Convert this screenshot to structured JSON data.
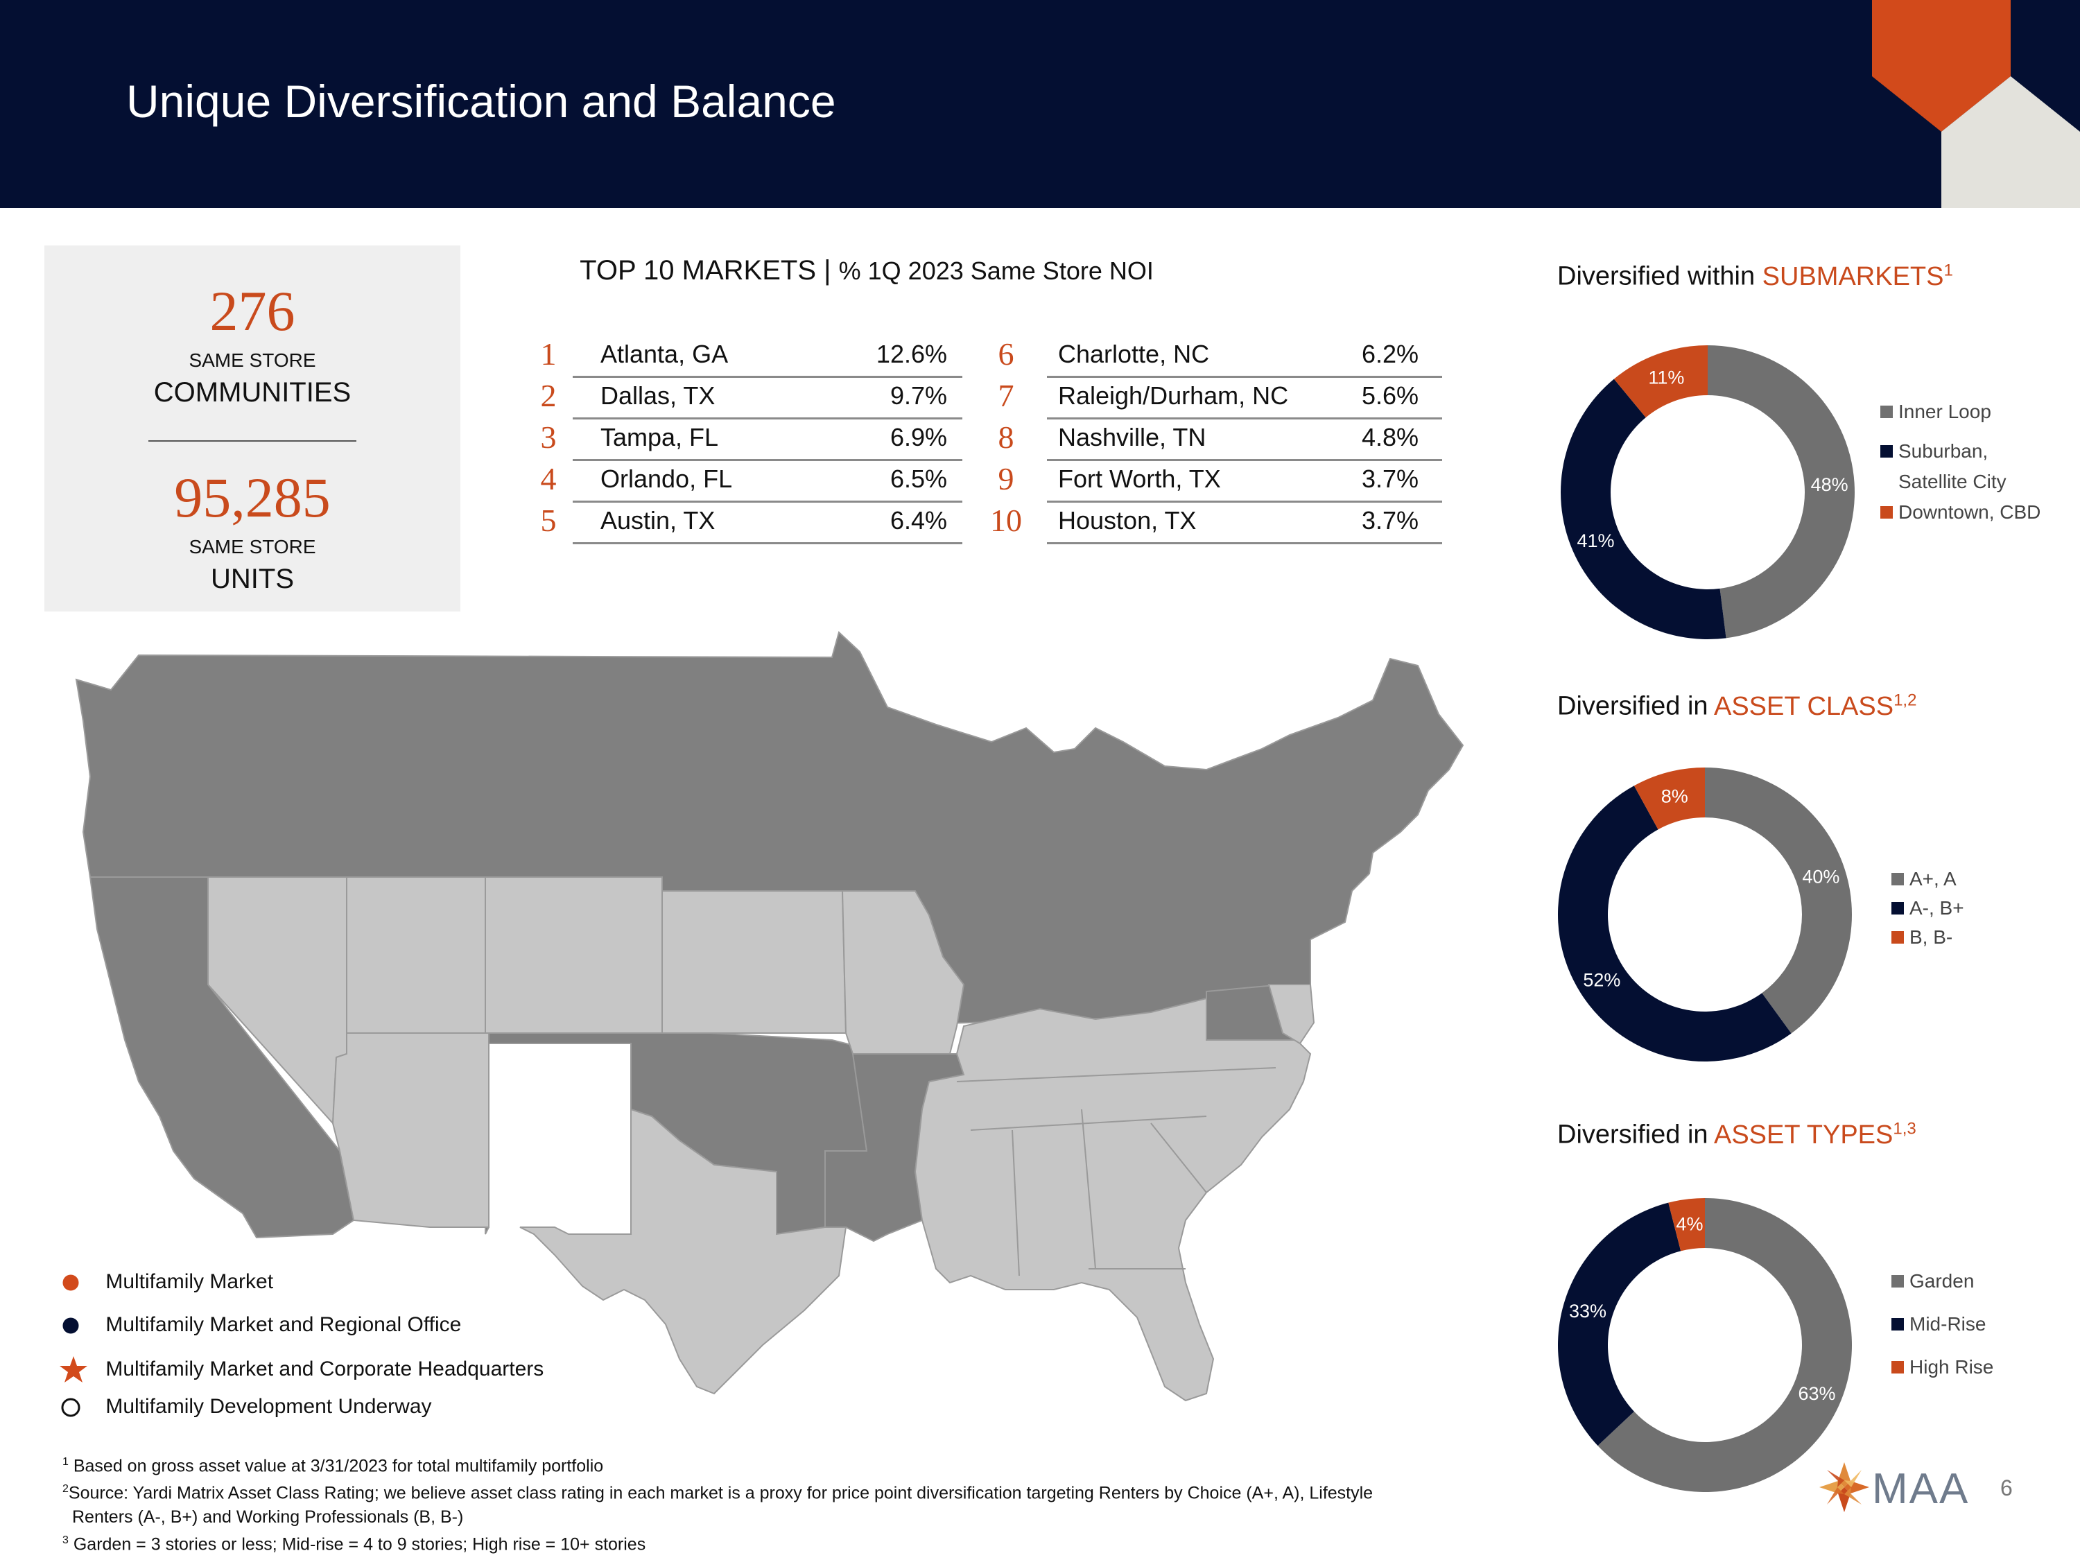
{
  "header": {
    "title": "Unique Diversification and Balance"
  },
  "stats": {
    "communities_value": "276",
    "communities_label_small": "SAME STORE",
    "communities_label": "COMMUNITIES",
    "units_value": "95,285",
    "units_label_small": "SAME STORE",
    "units_label": "UNITS"
  },
  "top_markets": {
    "title": "TOP 10 MARKETS |",
    "subtitle": "% 1Q 2023 Same Store NOI",
    "rows": [
      {
        "rank": "1",
        "name": "Atlanta, GA",
        "pct": "12.6%"
      },
      {
        "rank": "2",
        "name": "Dallas, TX",
        "pct": "9.7%"
      },
      {
        "rank": "3",
        "name": "Tampa, FL",
        "pct": "6.9%"
      },
      {
        "rank": "4",
        "name": "Orlando, FL",
        "pct": "6.5%"
      },
      {
        "rank": "5",
        "name": "Austin, TX",
        "pct": "6.4%"
      },
      {
        "rank": "6",
        "name": "Charlotte, NC",
        "pct": "6.2%"
      },
      {
        "rank": "7",
        "name": "Raleigh/Durham, NC",
        "pct": "5.6%"
      },
      {
        "rank": "8",
        "name": "Nashville, TN",
        "pct": "4.8%"
      },
      {
        "rank": "9",
        "name": "Fort Worth, TX",
        "pct": "3.7%"
      },
      {
        "rank": "10",
        "name": "Houston, TX",
        "pct": "3.7%"
      }
    ]
  },
  "colors": {
    "navy": "#040f32",
    "orange": "#c94a1c",
    "gray": "#707070",
    "map_dark": "#808080",
    "map_light": "#c6c6c6"
  },
  "chart_data": [
    {
      "type": "pie",
      "title_prefix": "Diversified within ",
      "title_accent": "SUBMARKETS",
      "title_sup": "1",
      "labels": [
        "Inner Loop",
        "Suburban, Satellite City",
        "Downtown, CBD"
      ],
      "legend_lines": [
        [
          "Inner Loop"
        ],
        [
          "Suburban,",
          "Satellite City"
        ],
        [
          "Downtown, CBD"
        ]
      ],
      "values": [
        48,
        41,
        11
      ],
      "value_labels": [
        "48%",
        "41%",
        "11%"
      ],
      "colors": [
        "#707070",
        "#040f32",
        "#c94a1c"
      ]
    },
    {
      "type": "pie",
      "title_prefix": "Diversified in ",
      "title_accent": "ASSET CLASS",
      "title_sup": "1,2",
      "labels": [
        "A+, A",
        "A-, B+",
        "B, B-"
      ],
      "legend_lines": [
        [
          "A+, A"
        ],
        [
          "A-, B+"
        ],
        [
          "B, B-"
        ]
      ],
      "values": [
        40,
        52,
        8
      ],
      "value_labels": [
        "40%",
        "52%",
        "8%"
      ],
      "colors": [
        "#707070",
        "#040f32",
        "#c94a1c"
      ]
    },
    {
      "type": "pie",
      "title_prefix": "Diversified in ",
      "title_accent": "ASSET TYPES",
      "title_sup": "1,3",
      "labels": [
        "Garden",
        "Mid-Rise",
        "High Rise"
      ],
      "legend_lines": [
        [
          "Garden"
        ],
        [
          "Mid-Rise"
        ],
        [
          "High Rise"
        ]
      ],
      "values": [
        63,
        33,
        4
      ],
      "value_labels": [
        "63%",
        "33%",
        "4%"
      ],
      "colors": [
        "#707070",
        "#040f32",
        "#c94a1c"
      ]
    }
  ],
  "map_legend": {
    "multifamily_market": "Multifamily Market",
    "regional_office": "Multifamily Market and Regional Office",
    "corporate_hq": "Multifamily Market and Corporate Headquarters",
    "development": "Multifamily Development Underway"
  },
  "footnotes": {
    "n1_mark": "1",
    "n1": " Based on gross asset value at 3/31/2023 for total multifamily portfolio",
    "n2_mark": "2",
    "n2": "Source: Yardi Matrix Asset Class Rating; we believe asset class rating in each market is a proxy for price point diversification targeting Renters by Choice (A+, A), Lifestyle",
    "n2b": "Renters (A-, B+) and Working Professionals (B, B-)",
    "n3_mark": "3",
    "n3": " Garden = 3 stories or less; Mid-rise = 4 to 9 stories; High rise = 10+ stories"
  },
  "logo": {
    "text": "MAA"
  },
  "page_number": "6"
}
